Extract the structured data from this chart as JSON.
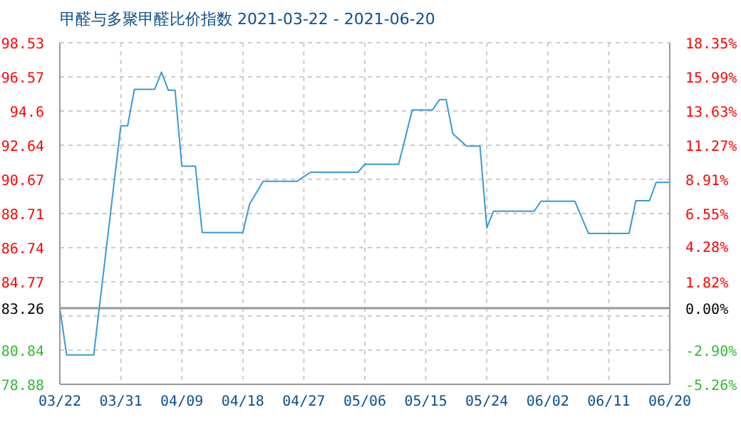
{
  "chart_data": {
    "type": "line",
    "title": "甲醛与多聚甲醛比价指数 2021-03-22 - 2021-06-20",
    "x": [
      "2021-03-22",
      "2021-03-23",
      "2021-03-27",
      "2021-03-31",
      "2021-04-01",
      "2021-04-02",
      "2021-04-05",
      "2021-04-06",
      "2021-04-07",
      "2021-04-08",
      "2021-04-09",
      "2021-04-11",
      "2021-04-12",
      "2021-04-18",
      "2021-04-19",
      "2021-04-21",
      "2021-04-26",
      "2021-04-28",
      "2021-05-05",
      "2021-05-06",
      "2021-05-11",
      "2021-05-13",
      "2021-05-16",
      "2021-05-17",
      "2021-05-18",
      "2021-05-19",
      "2021-05-21",
      "2021-05-23",
      "2021-05-24",
      "2021-05-25",
      "2021-05-31",
      "2021-06-01",
      "2021-06-06",
      "2021-06-08",
      "2021-06-14",
      "2021-06-15",
      "2021-06-17",
      "2021-06-18",
      "2021-06-20"
    ],
    "series": [
      {
        "color": "#3a9ad9",
        "values": [
          83.26,
          80.57,
          80.57,
          93.75,
          93.75,
          95.85,
          95.85,
          96.84,
          95.8,
          95.8,
          91.43,
          91.43,
          87.61,
          87.61,
          89.25,
          90.56,
          90.56,
          91.08,
          91.08,
          91.54,
          91.54,
          94.66,
          94.66,
          95.25,
          95.25,
          93.29,
          92.58,
          92.58,
          87.88,
          88.84,
          88.84,
          89.41,
          89.41,
          87.56,
          87.56,
          89.44,
          89.44,
          90.5,
          90.5
        ]
      }
    ],
    "xlim": [
      "2021-03-22",
      "2021-06-20"
    ],
    "xticks": [
      {
        "value": "2021-03-22",
        "label": "03/22"
      },
      {
        "value": "2021-03-31",
        "label": "03/31"
      },
      {
        "value": "2021-04-09",
        "label": "04/09"
      },
      {
        "value": "2021-04-18",
        "label": "04/18"
      },
      {
        "value": "2021-04-27",
        "label": "04/27"
      },
      {
        "value": "2021-05-06",
        "label": "05/06"
      },
      {
        "value": "2021-05-15",
        "label": "05/15"
      },
      {
        "value": "2021-05-24",
        "label": "05/24"
      },
      {
        "value": "2021-06-02",
        "label": "06/02"
      },
      {
        "value": "2021-06-11",
        "label": "06/11"
      },
      {
        "value": "2021-06-20",
        "label": "06/20"
      }
    ],
    "ylim": [
      78.88,
      98.53
    ],
    "yticks": [
      78.88,
      80.84,
      {
        "value": 82.81,
        "label": null
      },
      83.26,
      84.77,
      86.74,
      88.71,
      90.67,
      92.64,
      94.6,
      96.57,
      98.53
    ],
    "y2lim": [
      -5.26,
      18.35
    ],
    "y2ticks": [
      {
        "value": -5.26,
        "label": "-5.26%"
      },
      {
        "value": -2.9,
        "label": "-2.90%"
      },
      {
        "value": 0,
        "label": "0.00%"
      },
      {
        "value": 1.82,
        "label": "1.82%"
      },
      {
        "value": 4.28,
        "label": "4.28%"
      },
      {
        "value": 6.55,
        "label": "6.55%"
      },
      {
        "value": 8.91,
        "label": "8.91%"
      },
      {
        "value": 11.27,
        "label": "11.27%"
      },
      {
        "value": 13.63,
        "label": "13.63%"
      },
      {
        "value": 15.99,
        "label": "15.99%"
      },
      {
        "value": 18.35,
        "label": "18.35%"
      }
    ],
    "ref_lines": [
      {
        "axis": "y",
        "value": 83.26,
        "color": "#999999"
      }
    ],
    "grid": true,
    "marker": "none",
    "line_style": "solid",
    "legend": false
  }
}
